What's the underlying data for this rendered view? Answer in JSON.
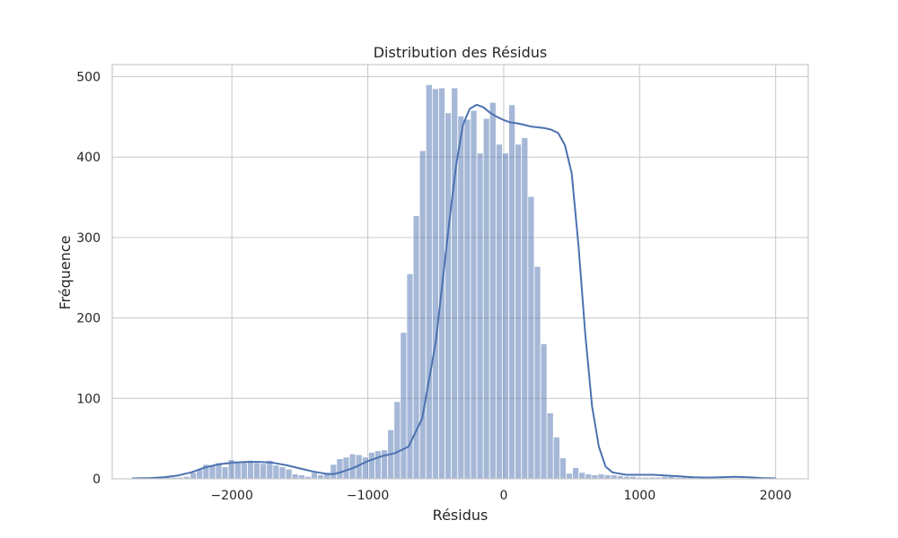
{
  "chart_data": {
    "type": "bar",
    "title": "Distribution des Résidus",
    "xlabel": "Résidus",
    "ylabel": "Fréquence",
    "xlim": [
      -2880,
      2240
    ],
    "ylim": [
      0,
      515
    ],
    "xticks": [
      -2000,
      -1000,
      0,
      1000,
      2000
    ],
    "xtick_labels": [
      "−2000",
      "−1000",
      "0",
      "1000",
      "2000"
    ],
    "yticks": [
      0,
      100,
      200,
      300,
      400,
      500
    ],
    "ytick_labels": [
      "0",
      "100",
      "200",
      "300",
      "400",
      "500"
    ],
    "grid": true,
    "bar_color": "#4c72b0",
    "bar_opacity": 0.5,
    "kde_color": "#4c72b0",
    "bins": {
      "start": -2730,
      "width": 46.9,
      "counts": [
        2,
        2,
        2,
        2,
        2,
        2,
        2,
        2,
        3,
        8,
        12,
        18,
        17,
        20,
        15,
        24,
        20,
        22,
        23,
        20,
        19,
        23,
        17,
        15,
        12,
        6,
        5,
        3,
        8,
        5,
        8,
        18,
        25,
        27,
        31,
        30,
        27,
        33,
        35,
        36,
        61,
        96,
        182,
        255,
        327,
        408,
        490,
        485,
        486,
        455,
        486,
        451,
        447,
        458,
        405,
        448,
        468,
        416,
        405,
        465,
        416,
        424,
        351,
        264,
        168,
        82,
        52,
        26,
        7,
        14,
        8,
        6,
        5,
        6,
        5,
        5,
        4,
        3,
        3,
        2,
        2,
        2,
        2,
        3,
        3,
        2,
        2,
        2,
        1,
        2
      ]
    },
    "kde": {
      "x": [
        -2730,
        -2600,
        -2500,
        -2400,
        -2300,
        -2200,
        -2100,
        -2000,
        -1900,
        -1800,
        -1700,
        -1600,
        -1500,
        -1400,
        -1300,
        -1250,
        -1200,
        -1100,
        -1000,
        -900,
        -800,
        -700,
        -600,
        -500,
        -400,
        -350,
        -300,
        -250,
        -200,
        -150,
        -100,
        -50,
        0,
        50,
        100,
        150,
        200,
        250,
        300,
        350,
        400,
        450,
        500,
        550,
        600,
        650,
        700,
        750,
        800,
        900,
        1000,
        1100,
        1200,
        1300,
        1400,
        1500,
        1600,
        1700,
        1800,
        1900,
        2000
      ],
      "y": [
        0.5,
        1,
        2,
        4,
        8,
        14,
        18,
        20,
        21,
        21,
        20,
        17,
        13,
        9,
        6,
        6,
        8,
        14,
        22,
        28,
        32,
        40,
        75,
        170,
        320,
        390,
        440,
        460,
        465,
        462,
        455,
        450,
        446,
        443,
        442,
        440,
        438,
        437,
        436,
        434,
        430,
        415,
        380,
        290,
        180,
        90,
        40,
        15,
        8,
        5,
        5,
        5,
        4,
        3,
        2,
        1.5,
        2,
        2.5,
        2,
        1,
        0.5
      ]
    }
  }
}
